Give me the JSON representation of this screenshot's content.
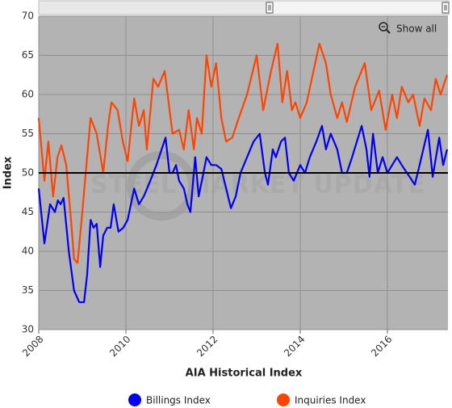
{
  "chart_data": {
    "type": "line",
    "x_label": "AIA Historical Index",
    "y_label": "Index",
    "watermark": "STEEL MARKET UPDATE",
    "button": "Show all",
    "xlim": [
      2008,
      2017.39
    ],
    "xticks": [
      2008,
      2010,
      2012,
      2014,
      2016
    ],
    "ylim": [
      30,
      70
    ],
    "yticks": [
      30,
      35,
      40,
      45,
      50,
      55,
      60,
      65,
      70
    ],
    "reference_line": 50,
    "grid": true,
    "legend": "bottom",
    "series": [
      {
        "name": "Billings Index",
        "color": "#0000ee",
        "x": [
          2008.0,
          2008.13,
          2008.26,
          2008.37,
          2008.44,
          2008.5,
          2008.57,
          2008.69,
          2008.81,
          2008.93,
          2009.04,
          2009.11,
          2009.19,
          2009.26,
          2009.33,
          2009.41,
          2009.48,
          2009.57,
          2009.65,
          2009.72,
          2009.83,
          2009.94,
          2010.04,
          2010.19,
          2010.3,
          2010.41,
          2010.56,
          2010.7,
          2010.91,
          2011.0,
          2011.07,
          2011.15,
          2011.22,
          2011.33,
          2011.41,
          2011.48,
          2011.59,
          2011.67,
          2011.78,
          2011.85,
          2011.96,
          2012.07,
          2012.19,
          2012.3,
          2012.41,
          2012.52,
          2012.63,
          2012.78,
          2012.93,
          2013.07,
          2013.19,
          2013.26,
          2013.37,
          2013.44,
          2013.56,
          2013.65,
          2013.74,
          2013.85,
          2014.0,
          2014.11,
          2014.22,
          2014.37,
          2014.5,
          2014.59,
          2014.7,
          2014.85,
          2014.96,
          2015.07,
          2015.19,
          2015.41,
          2015.52,
          2015.59,
          2015.67,
          2015.78,
          2015.89,
          2016.0,
          2016.11,
          2016.22,
          2016.33,
          2016.63,
          2016.74,
          2016.93,
          2017.04,
          2017.19,
          2017.28,
          2017.37
        ],
        "values": [
          48,
          41,
          46,
          45,
          46.5,
          46,
          46.8,
          40,
          35,
          33.5,
          33.5,
          37,
          44,
          43,
          43.5,
          38,
          42,
          43,
          43,
          46,
          42.5,
          43,
          44,
          48,
          46,
          47,
          49,
          51,
          54.5,
          50,
          50,
          51,
          49,
          48,
          46,
          45,
          52,
          47,
          50,
          52,
          51,
          51,
          50.5,
          48,
          45.5,
          47,
          50,
          52,
          54,
          55,
          50,
          48.5,
          53,
          52,
          54,
          54.5,
          50,
          49,
          51,
          50,
          52,
          54,
          56,
          53,
          55,
          53,
          50,
          50,
          52,
          56,
          53,
          49.5,
          55,
          50,
          52,
          50,
          51,
          52,
          51,
          48.5,
          51,
          55.5,
          49.5,
          54.5,
          51,
          53
        ]
      },
      {
        "name": "Inquiries Index",
        "color": "#ff4400",
        "x": [
          2008.0,
          2008.13,
          2008.22,
          2008.33,
          2008.43,
          2008.52,
          2008.63,
          2008.74,
          2008.81,
          2008.89,
          2009.0,
          2009.11,
          2009.19,
          2009.33,
          2009.48,
          2009.59,
          2009.67,
          2009.81,
          2009.93,
          2010.04,
          2010.19,
          2010.3,
          2010.41,
          2010.48,
          2010.63,
          2010.74,
          2010.89,
          2011.07,
          2011.22,
          2011.33,
          2011.44,
          2011.56,
          2011.63,
          2011.74,
          2011.85,
          2011.96,
          2012.07,
          2012.19,
          2012.3,
          2012.44,
          2012.59,
          2012.78,
          2013.0,
          2013.15,
          2013.33,
          2013.48,
          2013.59,
          2013.7,
          2013.81,
          2013.89,
          2014.0,
          2014.15,
          2014.44,
          2014.59,
          2014.7,
          2014.85,
          2014.96,
          2015.07,
          2015.26,
          2015.48,
          2015.63,
          2015.81,
          2015.96,
          2016.11,
          2016.22,
          2016.33,
          2016.48,
          2016.59,
          2016.74,
          2016.85,
          2017.0,
          2017.11,
          2017.22,
          2017.37
        ],
        "values": [
          57,
          49,
          54,
          47,
          52,
          53.5,
          51,
          44,
          39,
          38.5,
          45,
          52,
          57,
          55,
          50,
          56,
          59,
          58,
          54,
          51.5,
          59.5,
          56,
          58,
          53,
          62,
          61,
          63,
          55,
          55.5,
          53,
          58,
          53,
          57,
          55,
          65,
          61,
          64,
          57,
          54,
          54.5,
          57,
          60,
          65,
          58,
          63,
          66.5,
          59,
          63,
          58,
          59,
          57,
          59,
          66.5,
          64,
          60,
          57,
          59,
          56.5,
          61,
          64,
          58,
          60.5,
          55.5,
          60,
          57,
          61,
          59,
          60,
          56,
          59.5,
          58,
          62,
          60,
          62.5
        ]
      }
    ]
  }
}
